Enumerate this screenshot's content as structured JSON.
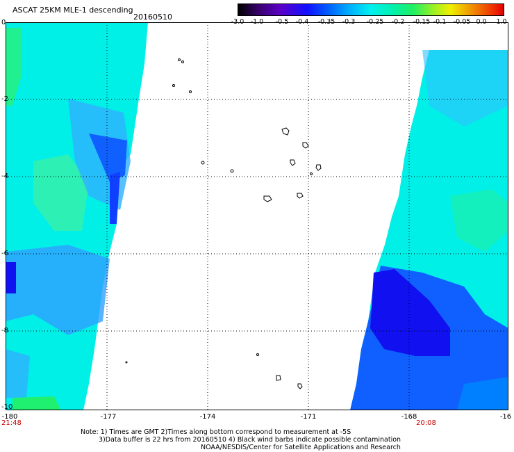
{
  "header": {
    "title": "ASCAT 25KM MLE-1 descending",
    "date": "20160510"
  },
  "colorbar": {
    "labels": [
      "-3.0",
      "-1.0",
      "-0.5",
      "-0.4",
      "-0.35",
      "-0.3",
      "-0.25",
      "-0.2",
      "-0.15",
      "-0.1",
      "-0.05",
      "0.0",
      "1.0"
    ]
  },
  "axes": {
    "y_ticks": [
      "0",
      "-2",
      "-4",
      "-6",
      "-8",
      "-10"
    ],
    "x_ticks": [
      "-180",
      "-177",
      "-174",
      "-171",
      "-168",
      "-16"
    ]
  },
  "times": {
    "left": "21:48",
    "right": "20:08"
  },
  "notes": {
    "line1": "Note: 1) Times are GMT 2)Times along bottom correspond to measurement at -5S",
    "line2": "3)Data buffer is 22 hrs from 20160510 4) Black wind barbs indicate possible contamination",
    "line3": "NOAA/NESDIS/Center for Satellite Applications and Research"
  },
  "colors": {
    "cyan": "#00f0e8",
    "green": "#20f080",
    "blue": "#1060ff",
    "deep_blue": "#1010f0"
  }
}
